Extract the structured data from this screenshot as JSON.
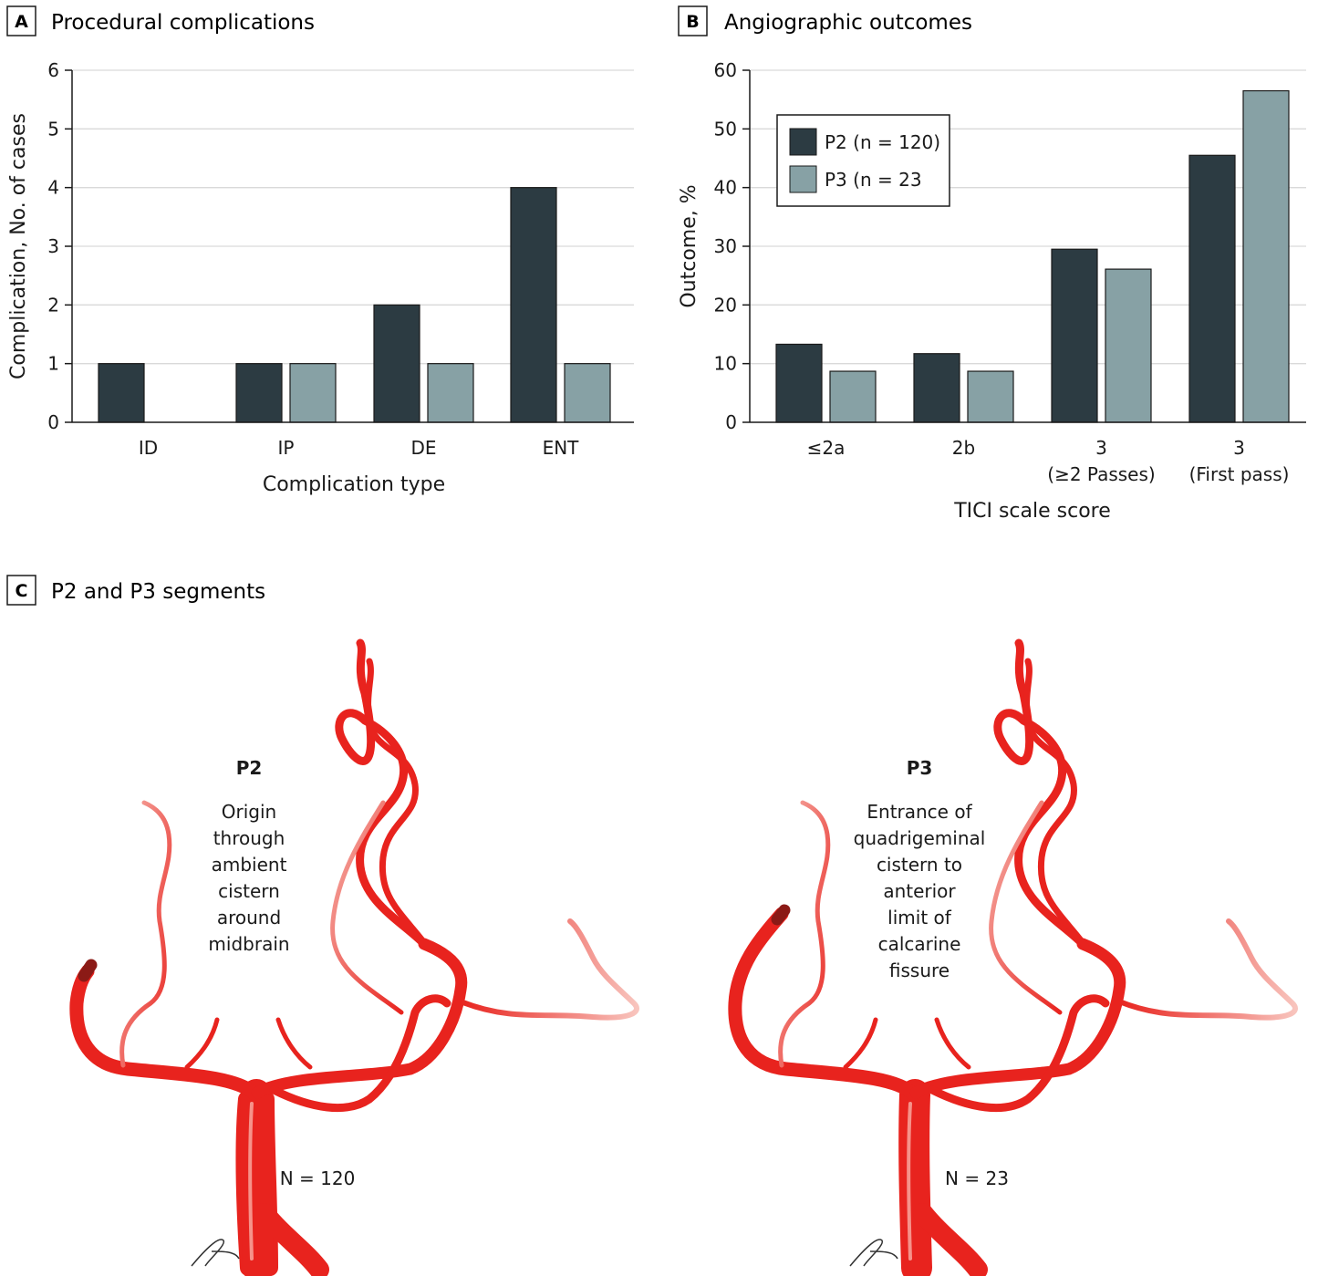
{
  "colors": {
    "p2": "#2c3b42",
    "p3": "#87a1a5",
    "vessel": "#e8231e",
    "vessel_light": "#f07a70",
    "grid": "#d9d9d9"
  },
  "panels": {
    "a": {
      "letter": "A",
      "title": "Procedural complications"
    },
    "b": {
      "letter": "B",
      "title": "Angiographic outcomes"
    },
    "c": {
      "letter": "C",
      "title": "P2 and P3 segments"
    }
  },
  "legend": {
    "p2": "P2 (n = 120)",
    "p3": "P3 (n = 23"
  },
  "chart_data": [
    {
      "type": "bar",
      "title": "Procedural complications",
      "xlabel": "Complication type",
      "ylabel": "Complication, No. of cases",
      "categories": [
        "ID",
        "IP",
        "DE",
        "ENT"
      ],
      "ylim": [
        0,
        6
      ],
      "yticks": [
        0,
        1,
        2,
        3,
        4,
        5,
        6
      ],
      "grid": "horizontal",
      "series": [
        {
          "name": "P2 (n = 120)",
          "values": [
            1,
            1,
            2,
            4
          ]
        },
        {
          "name": "P3 (n = 23",
          "values": [
            0,
            1,
            1,
            1
          ]
        }
      ]
    },
    {
      "type": "bar",
      "title": "Angiographic outcomes",
      "xlabel": "TICI scale score",
      "ylabel": "Outcome, %",
      "categories": [
        [
          "≤2a"
        ],
        [
          "2b"
        ],
        [
          "3",
          "(≥2 Passes)"
        ],
        [
          "3",
          "(First pass)"
        ]
      ],
      "ylim": [
        0,
        60
      ],
      "yticks": [
        0,
        10,
        20,
        30,
        40,
        50,
        60
      ],
      "grid": "horizontal",
      "legend_position": "top-left",
      "series": [
        {
          "name": "P2 (n = 120)",
          "values": [
            13.3,
            11.7,
            29.5,
            45.5
          ]
        },
        {
          "name": "P3 (n = 23",
          "values": [
            8.7,
            8.7,
            26.1,
            56.5
          ]
        }
      ]
    }
  ],
  "segments": {
    "p2": {
      "title": "P2",
      "lines": [
        "Origin",
        "through",
        "ambient",
        "cistern",
        "around",
        "midbrain"
      ],
      "n": "N = 120"
    },
    "p3": {
      "title": "P3",
      "lines": [
        "Entrance of",
        "quadrigeminal",
        "cistern to",
        "anterior",
        "limit of",
        "calcarine",
        "fissure"
      ],
      "n": "N = 23"
    }
  }
}
